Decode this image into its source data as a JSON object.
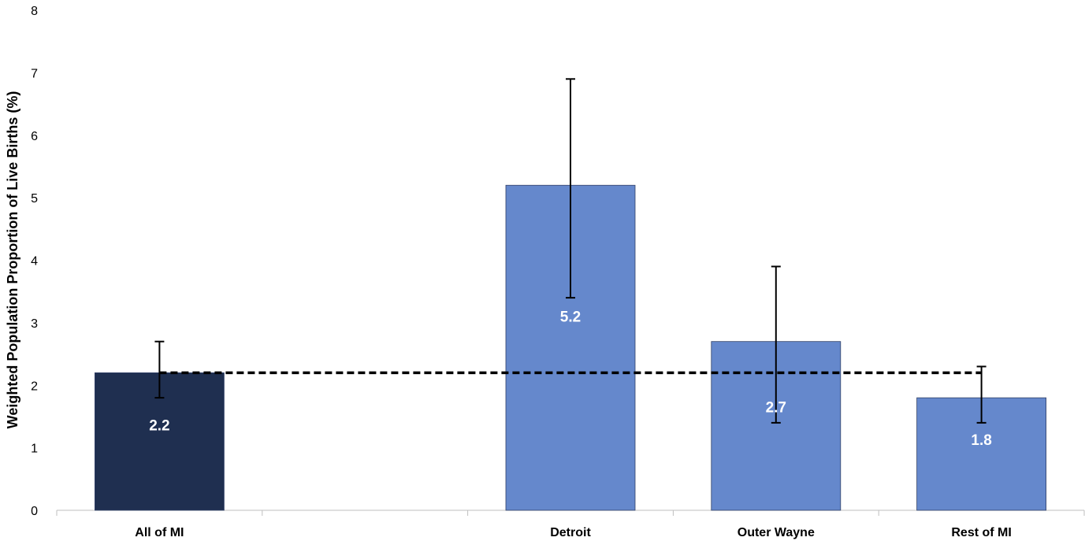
{
  "chart_data": {
    "type": "bar",
    "categories": [
      "All of MI",
      "",
      "Detroit",
      "Outer Wayne",
      "Rest of MI"
    ],
    "values": [
      2.2,
      null,
      5.2,
      2.7,
      1.8
    ],
    "data_labels": [
      "2.2",
      "",
      "5.2",
      "2.7",
      "1.8"
    ],
    "error_low": [
      1.8,
      null,
      3.4,
      1.4,
      1.4
    ],
    "error_high": [
      2.7,
      null,
      6.9,
      3.9,
      2.3
    ],
    "bar_colors": [
      "#1f2f50",
      null,
      "#6588cc",
      "#6588cc",
      "#6588cc"
    ],
    "reference_line": {
      "value": 2.2,
      "style": "dashed",
      "color": "#000000"
    },
    "title": "",
    "xlabel": "",
    "ylabel": "Weighted Population Proportion of Live Births (%)",
    "ylim": [
      0,
      8
    ],
    "yticks": [
      "0",
      "1",
      "2",
      "3",
      "4",
      "5",
      "6",
      "7",
      "8"
    ],
    "grid": false,
    "legend": "none"
  }
}
